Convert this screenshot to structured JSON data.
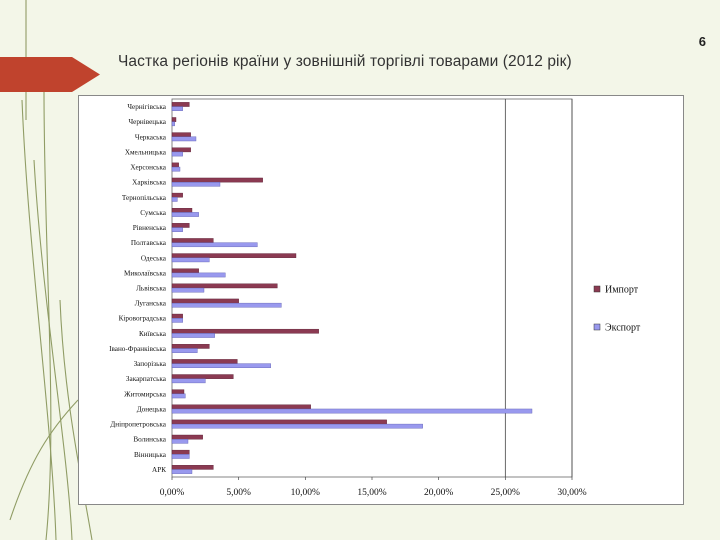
{
  "slide": {
    "title": "Частка регіонів країни у зовнішній торгівлі товарами (2012 рік)",
    "page_number": "6"
  },
  "colors": {
    "import": "#8b3a52",
    "export": "#9999ee",
    "ribbon": "#c0432d",
    "background": "#f3f6e8"
  },
  "chart_data": {
    "type": "bar",
    "orientation": "horizontal",
    "categories": [
      "Чернігівська",
      "Чернівецька",
      "Черкаська",
      "Хмельницька",
      "Херсонська",
      "Харківська",
      "Тернопільська",
      "Сумська",
      "Рівненська",
      "Полтавська",
      "Одеська",
      "Миколаївська",
      "Львівська",
      "Луганська",
      "Кіровоградська",
      "Київська",
      "Івано-Франківська",
      "Запорізька",
      "Закарпатська",
      "Житомирська",
      "Донецька",
      "Дніпропетровська",
      "Волинська",
      "Вінницька",
      "АРК"
    ],
    "series": [
      {
        "name": "Импорт",
        "values": [
          1.3,
          0.3,
          1.4,
          1.4,
          0.5,
          6.8,
          0.8,
          1.5,
          1.3,
          3.1,
          9.3,
          2.0,
          7.9,
          5.0,
          0.8,
          11.0,
          2.8,
          4.9,
          4.6,
          0.9,
          10.4,
          16.1,
          2.3,
          1.3,
          3.1
        ]
      },
      {
        "name": "Экспорт",
        "values": [
          0.8,
          0.2,
          1.8,
          0.8,
          0.6,
          3.6,
          0.4,
          2.0,
          0.8,
          6.4,
          2.8,
          4.0,
          2.4,
          8.2,
          0.8,
          3.2,
          1.9,
          7.4,
          2.5,
          1.0,
          27.0,
          18.8,
          1.2,
          1.3,
          1.5
        ]
      }
    ],
    "x_ticks": [
      "0,00%",
      "5,00%",
      "10,00%",
      "15,00%",
      "20,00%",
      "25,00%",
      "30,00%"
    ],
    "xlim": [
      0,
      30
    ],
    "grid": "vertical gridlines at 25% and 30%",
    "legend_position": "right"
  }
}
